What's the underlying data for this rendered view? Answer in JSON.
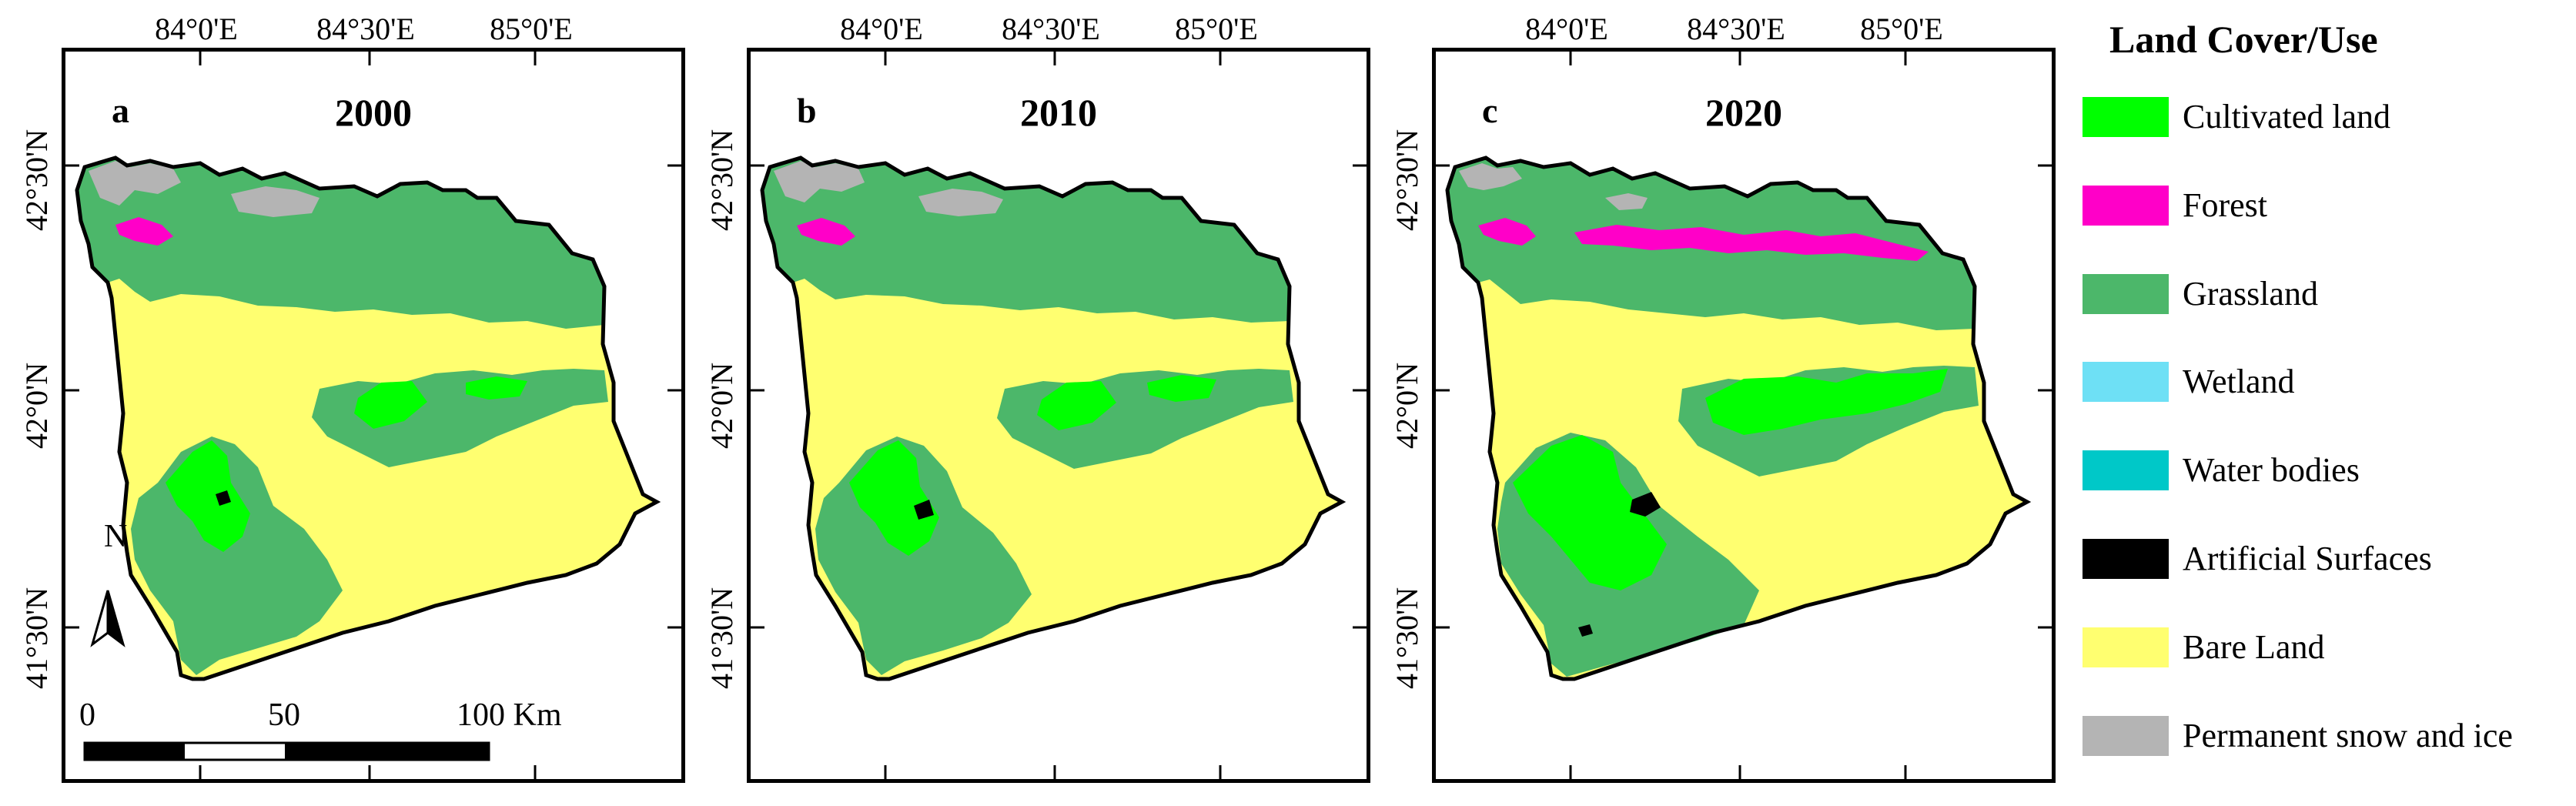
{
  "figure": {
    "lon_labels": [
      "84°0'E",
      "84°30'E",
      "85°0'E"
    ],
    "lat_labels": [
      "42°30'N",
      "42°0'N",
      "41°30'N"
    ]
  },
  "panels": [
    {
      "letter": "a",
      "year": "2000"
    },
    {
      "letter": "b",
      "year": "2010"
    },
    {
      "letter": "c",
      "year": "2020"
    }
  ],
  "north_arrow": {
    "label": "N"
  },
  "scale_bar": {
    "ticks": [
      "0",
      "50",
      "100 Km"
    ]
  },
  "legend": {
    "title": "Land Cover/Use",
    "items": [
      {
        "label": "Cultivated land",
        "color": "#00ff00"
      },
      {
        "label": "Forest",
        "color": "#ff00c8"
      },
      {
        "label": "Grassland",
        "color": "#4cb76a"
      },
      {
        "label": "Wetland",
        "color": "#6ee0f5"
      },
      {
        "label": "Water bodies",
        "color": "#00c8c8"
      },
      {
        "label": "Artificial Surfaces",
        "color": "#000000"
      },
      {
        "label": "Bare Land",
        "color": "#ffff70"
      },
      {
        "label": "Permanent snow and ice",
        "color": "#b4b4b4"
      }
    ]
  }
}
